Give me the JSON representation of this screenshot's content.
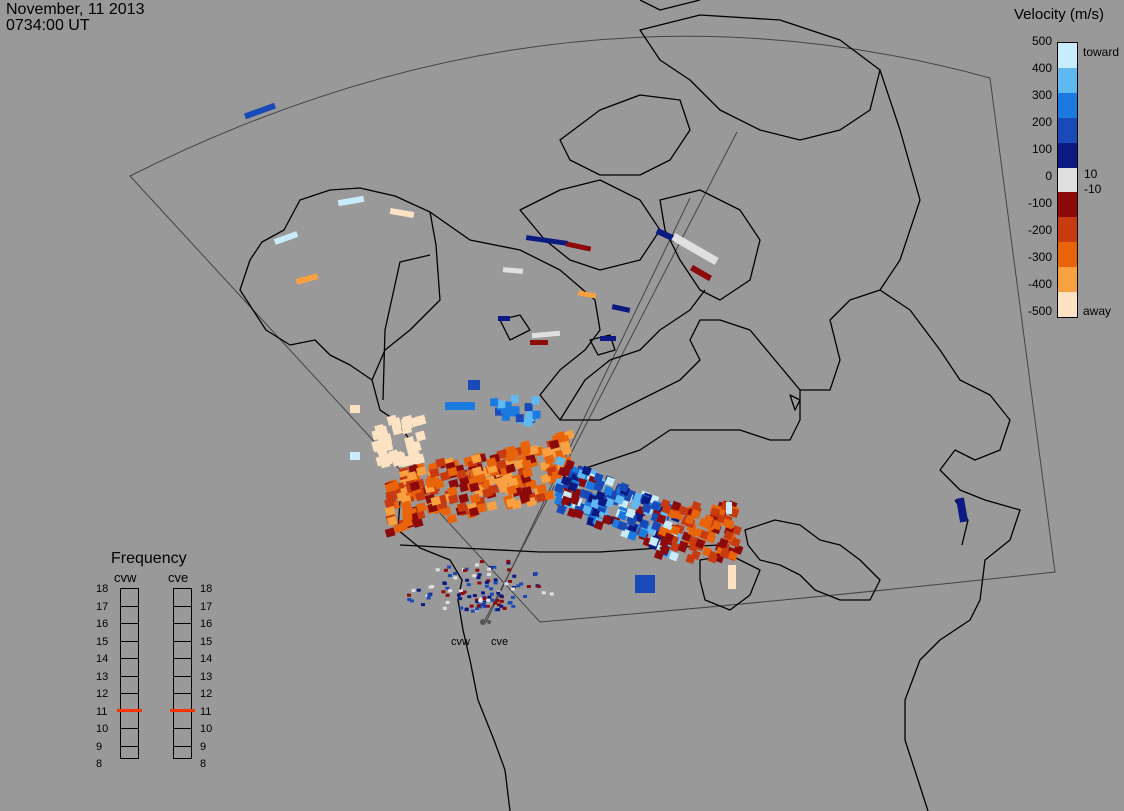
{
  "header": {
    "date": "November, 11 2013",
    "time": "0734:00 UT"
  },
  "colorbar": {
    "title": "Velocity (m/s)",
    "ticks": [
      "500",
      "400",
      "300",
      "200",
      "100",
      "0",
      "-100",
      "-200",
      "-300",
      "-400",
      "-500"
    ],
    "inner_labels": [
      "10",
      "-10"
    ],
    "toward_label": "toward",
    "away_label": "away",
    "colors": [
      "#fde2c4",
      "#f9a040",
      "#e8640a",
      "#c83a10",
      "#8c0a0a",
      "#e0e0e0",
      "#0a1a80",
      "#1a4ab8",
      "#1a7ae0",
      "#60b8f0",
      "#c8ecfc"
    ]
  },
  "frequency_panel": {
    "title": "Frequency",
    "radars": [
      "cvw",
      "cve"
    ],
    "scale": [
      "18",
      "17",
      "16",
      "15",
      "14",
      "13",
      "12",
      "11",
      "10",
      "9",
      "8"
    ],
    "current": {
      "cvw": 10.8,
      "cve": 10.8
    },
    "marker_color": "#ff3300"
  },
  "sites": [
    "cvw",
    "cve"
  ],
  "colors": {
    "background": "#999999",
    "coast": "#000000",
    "fov": "#444444"
  }
}
